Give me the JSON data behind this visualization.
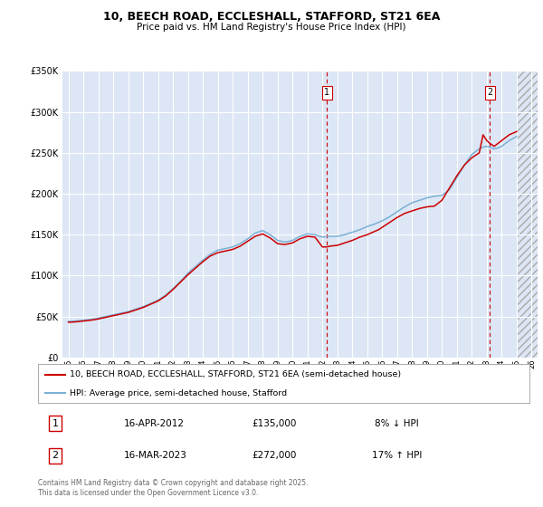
{
  "title": "10, BEECH ROAD, ECCLESHALL, STAFFORD, ST21 6EA",
  "subtitle": "Price paid vs. HM Land Registry's House Price Index (HPI)",
  "legend_label_red": "10, BEECH ROAD, ECCLESHALL, STAFFORD, ST21 6EA (semi-detached house)",
  "legend_label_blue": "HPI: Average price, semi-detached house, Stafford",
  "transaction1_label": "1",
  "transaction1_date": "16-APR-2012",
  "transaction1_price": "£135,000",
  "transaction1_hpi": "8% ↓ HPI",
  "transaction2_label": "2",
  "transaction2_date": "16-MAR-2023",
  "transaction2_price": "£272,000",
  "transaction2_hpi": "17% ↑ HPI",
  "footer": "Contains HM Land Registry data © Crown copyright and database right 2025.\nThis data is licensed under the Open Government Licence v3.0.",
  "background_color": "#ffffff",
  "plot_bg_color": "#dce6f5",
  "grid_color": "#ffffff",
  "red_color": "#cc0000",
  "blue_color": "#7ab0d4",
  "vline_color": "#cc0000",
  "ylim": [
    0,
    350000
  ],
  "yticks": [
    0,
    50000,
    100000,
    150000,
    200000,
    250000,
    300000,
    350000
  ],
  "transaction1_x": 2012.29,
  "transaction2_x": 2023.21,
  "xlim_left": 1994.6,
  "xlim_right": 2026.4,
  "hpi_years": [
    1995.0,
    1995.25,
    1995.5,
    1995.75,
    1996.0,
    1996.25,
    1996.5,
    1996.75,
    1997.0,
    1997.25,
    1997.5,
    1997.75,
    1998.0,
    1998.25,
    1998.5,
    1998.75,
    1999.0,
    1999.25,
    1999.5,
    1999.75,
    2000.0,
    2000.25,
    2000.5,
    2000.75,
    2001.0,
    2001.25,
    2001.5,
    2001.75,
    2002.0,
    2002.25,
    2002.5,
    2002.75,
    2003.0,
    2003.25,
    2003.5,
    2003.75,
    2004.0,
    2004.25,
    2004.5,
    2004.75,
    2005.0,
    2005.25,
    2005.5,
    2005.75,
    2006.0,
    2006.25,
    2006.5,
    2006.75,
    2007.0,
    2007.25,
    2007.5,
    2007.75,
    2008.0,
    2008.25,
    2008.5,
    2008.75,
    2009.0,
    2009.25,
    2009.5,
    2009.75,
    2010.0,
    2010.25,
    2010.5,
    2010.75,
    2011.0,
    2011.25,
    2011.5,
    2011.75,
    2012.0,
    2012.25,
    2012.5,
    2012.75,
    2013.0,
    2013.25,
    2013.5,
    2013.75,
    2014.0,
    2014.25,
    2014.5,
    2014.75,
    2015.0,
    2015.25,
    2015.5,
    2015.75,
    2016.0,
    2016.25,
    2016.5,
    2016.75,
    2017.0,
    2017.25,
    2017.5,
    2017.75,
    2018.0,
    2018.25,
    2018.5,
    2018.75,
    2019.0,
    2019.25,
    2019.5,
    2019.75,
    2020.0,
    2020.25,
    2020.5,
    2020.75,
    2021.0,
    2021.25,
    2021.5,
    2021.75,
    2022.0,
    2022.25,
    2022.5,
    2022.75,
    2023.0,
    2023.25,
    2023.5,
    2023.75,
    2024.0,
    2024.25,
    2024.5,
    2024.75,
    2025.0
  ],
  "hpi_values": [
    44000,
    44200,
    44500,
    45000,
    45500,
    46000,
    46500,
    47200,
    48000,
    49000,
    50000,
    51000,
    52000,
    53000,
    54000,
    55000,
    56000,
    57500,
    59000,
    60500,
    62000,
    64000,
    66000,
    68000,
    70000,
    73000,
    76000,
    80000,
    84000,
    88500,
    93000,
    98000,
    103000,
    107000,
    111000,
    115000,
    119000,
    122500,
    126000,
    128500,
    131000,
    132000,
    133000,
    134000,
    135000,
    137000,
    139000,
    142000,
    145000,
    148500,
    152000,
    153500,
    155000,
    152500,
    150000,
    146500,
    143000,
    142000,
    141000,
    142000,
    143000,
    145500,
    148000,
    149500,
    151000,
    150500,
    150000,
    148500,
    147000,
    147500,
    148000,
    148000,
    148000,
    149000,
    150000,
    151500,
    153000,
    154500,
    156000,
    158000,
    160000,
    161500,
    163000,
    165000,
    167000,
    169500,
    172000,
    175000,
    178000,
    181000,
    184000,
    186500,
    189000,
    190500,
    192000,
    193500,
    195000,
    196000,
    197000,
    197500,
    198000,
    201500,
    205000,
    212500,
    220000,
    227500,
    235000,
    241500,
    248000,
    251500,
    255000,
    257000,
    258000,
    256500,
    255000,
    256000,
    258000,
    261500,
    265000,
    267500,
    270000
  ],
  "price_years": [
    1995.0,
    1995.25,
    1995.5,
    1995.75,
    1996.0,
    1996.25,
    1996.5,
    1996.75,
    1997.0,
    1997.25,
    1997.5,
    1997.75,
    1998.0,
    1998.25,
    1998.5,
    1998.75,
    1999.0,
    1999.25,
    1999.5,
    1999.75,
    2000.0,
    2000.25,
    2000.5,
    2000.75,
    2001.0,
    2001.25,
    2001.5,
    2001.75,
    2002.0,
    2002.25,
    2002.5,
    2002.75,
    2003.0,
    2003.25,
    2003.5,
    2003.75,
    2004.0,
    2004.25,
    2004.5,
    2004.75,
    2005.0,
    2005.25,
    2005.5,
    2005.75,
    2006.0,
    2006.25,
    2006.5,
    2006.75,
    2007.0,
    2007.25,
    2007.5,
    2007.75,
    2008.0,
    2008.25,
    2008.5,
    2008.75,
    2009.0,
    2009.25,
    2009.5,
    2009.75,
    2010.0,
    2010.25,
    2010.5,
    2010.75,
    2011.0,
    2011.25,
    2011.5,
    2011.75,
    2012.0,
    2012.29,
    2012.5,
    2012.75,
    2013.0,
    2013.25,
    2013.5,
    2013.75,
    2014.0,
    2014.25,
    2014.5,
    2014.75,
    2015.0,
    2015.25,
    2015.5,
    2015.75,
    2016.0,
    2016.25,
    2016.5,
    2016.75,
    2017.0,
    2017.25,
    2017.5,
    2017.75,
    2018.0,
    2018.25,
    2018.5,
    2018.75,
    2019.0,
    2019.25,
    2019.5,
    2019.75,
    2020.0,
    2020.25,
    2020.5,
    2020.75,
    2021.0,
    2021.25,
    2021.5,
    2021.75,
    2022.0,
    2022.25,
    2022.5,
    2022.75,
    2023.0,
    2023.21,
    2023.5,
    2023.75,
    2024.0,
    2024.25,
    2024.5,
    2024.75,
    2025.0
  ],
  "price_values": [
    43000,
    43200,
    43500,
    44000,
    44500,
    45000,
    45500,
    46200,
    47000,
    48000,
    49000,
    50000,
    51000,
    52000,
    53000,
    54000,
    55000,
    56500,
    58000,
    59500,
    61000,
    63000,
    65000,
    67000,
    69000,
    72000,
    75000,
    79000,
    83000,
    87500,
    92000,
    96500,
    101000,
    105000,
    109000,
    113000,
    117000,
    120500,
    124000,
    126000,
    128000,
    129000,
    130000,
    131000,
    132000,
    134000,
    136000,
    139000,
    142000,
    145000,
    148000,
    149500,
    151000,
    148500,
    146000,
    142500,
    139000,
    138500,
    138000,
    139000,
    140000,
    142500,
    145000,
    146500,
    148000,
    147500,
    147000,
    141000,
    135000,
    135000,
    136000,
    136500,
    137000,
    138500,
    140000,
    141500,
    143000,
    145000,
    147000,
    148500,
    150000,
    152000,
    154000,
    156000,
    159000,
    162000,
    165000,
    168000,
    171000,
    173500,
    176000,
    177500,
    179000,
    180500,
    182000,
    183000,
    184000,
    184500,
    185000,
    188500,
    192000,
    199500,
    207000,
    214500,
    222000,
    228500,
    235000,
    239500,
    244000,
    247000,
    250000,
    272000,
    265000,
    261500,
    258000,
    261500,
    265000,
    268500,
    272000,
    274000,
    276000
  ]
}
